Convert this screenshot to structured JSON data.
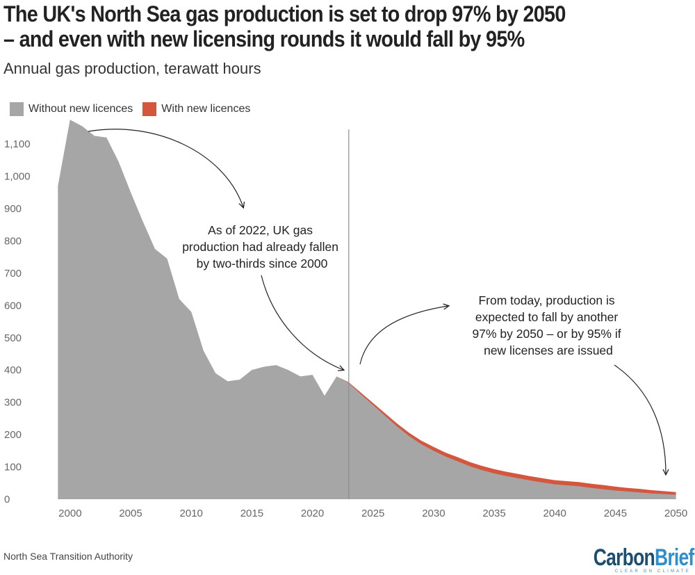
{
  "title_line1": "The UK's North Sea gas production is set to drop 97% by 2050",
  "title_line2": "– and even with new licensing rounds it would fall by 95%",
  "subtitle": "Annual gas production, terawatt hours",
  "source": "North Sea Transition Authority",
  "brand": {
    "part1": "Carbon",
    "part2": "Brief",
    "tagline": "CLEAR ON CLIMATE"
  },
  "colors": {
    "without": "#a6a6a6",
    "with": "#d4563c",
    "divider": "#8c8c8c",
    "brand_dark": "#1b4f72",
    "brand_light": "#2f8fce"
  },
  "annotations": {
    "a1": [
      "As of 2022, UK gas",
      "production had already fallen",
      "by two-thirds since 2000"
    ],
    "a2": [
      "From today, production is",
      "expected to fall by another",
      "97% by 2050 – or by 95% if",
      "new licenses are issued"
    ]
  },
  "chart_data": {
    "type": "area",
    "title": "The UK's North Sea gas production is set to drop 97% by 2050 – and even with new licensing rounds it would fall by 95%",
    "subtitle": "Annual gas production, terawatt hours",
    "xlabel": "",
    "ylabel": "",
    "xlim": [
      1998,
      2051
    ],
    "ylim": [
      0,
      1180
    ],
    "y_ticks": [
      0,
      100,
      200,
      300,
      400,
      500,
      600,
      700,
      800,
      900,
      1000,
      1100
    ],
    "y_tick_labels": [
      "0",
      "100",
      "200",
      "300",
      "400",
      "500",
      "600",
      "700",
      "800",
      "900",
      "1,000",
      "1,100"
    ],
    "x_ticks": [
      2000,
      2005,
      2010,
      2015,
      2020,
      2025,
      2030,
      2035,
      2040,
      2045,
      2050
    ],
    "x_tick_labels": [
      "2000",
      "2005",
      "2010",
      "2015",
      "2020",
      "2025",
      "2030",
      "2035",
      "2040",
      "2045",
      "2050"
    ],
    "grid": false,
    "legend_position": "top-left",
    "divider_year": 2023,
    "x": [
      1999,
      2000,
      2001,
      2002,
      2003,
      2004,
      2005,
      2006,
      2007,
      2008,
      2009,
      2010,
      2011,
      2012,
      2013,
      2014,
      2015,
      2016,
      2017,
      2018,
      2019,
      2020,
      2021,
      2022,
      2023,
      2024,
      2025,
      2026,
      2027,
      2028,
      2029,
      2030,
      2031,
      2032,
      2033,
      2034,
      2035,
      2036,
      2037,
      2038,
      2039,
      2040,
      2041,
      2042,
      2043,
      2044,
      2045,
      2046,
      2047,
      2048,
      2049,
      2050
    ],
    "series": [
      {
        "name": "Without new licences",
        "values": [
          970,
          1175,
          1155,
          1125,
          1120,
          1045,
          950,
          860,
          775,
          745,
          620,
          580,
          460,
          390,
          365,
          370,
          400,
          410,
          415,
          400,
          380,
          385,
          320,
          380,
          360,
          325,
          292,
          258,
          225,
          195,
          170,
          150,
          132,
          117,
          102,
          90,
          80,
          72,
          65,
          58,
          52,
          46,
          43,
          40,
          35,
          31,
          27,
          24,
          21,
          18,
          16,
          14
        ]
      },
      {
        "name": "With new licences",
        "values": [
          970,
          1175,
          1155,
          1125,
          1120,
          1045,
          950,
          860,
          775,
          745,
          620,
          580,
          460,
          390,
          365,
          370,
          400,
          410,
          415,
          400,
          380,
          385,
          320,
          380,
          362,
          330,
          298,
          266,
          234,
          205,
          181,
          162,
          144,
          130,
          115,
          103,
          93,
          85,
          78,
          71,
          65,
          59,
          56,
          53,
          48,
          44,
          39,
          35,
          32,
          28,
          25,
          22
        ]
      }
    ]
  }
}
